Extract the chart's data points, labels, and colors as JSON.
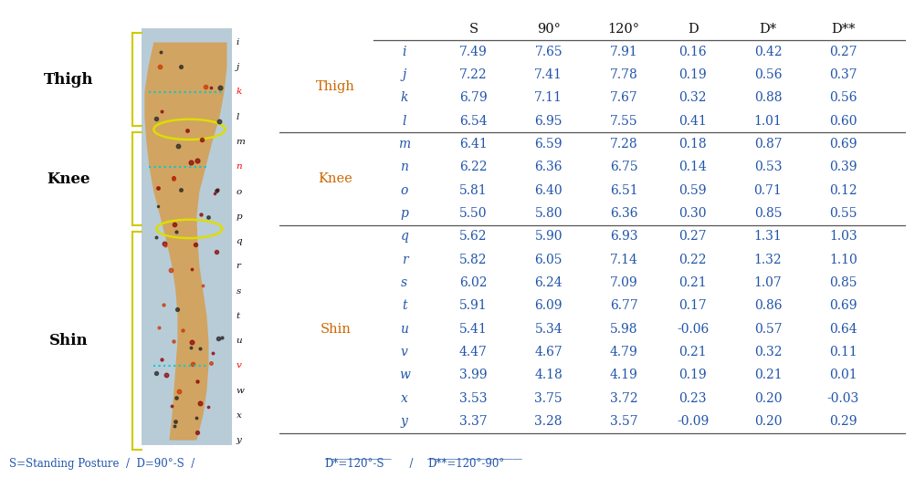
{
  "headers": [
    "",
    "",
    "S",
    "90°",
    "120°",
    "D",
    "D*",
    "D**"
  ],
  "sections": [
    {
      "label": "Thigh",
      "rows": [
        [
          "i",
          "7.49",
          "7.65",
          "7.91",
          "0.16",
          "0.42",
          "0.27"
        ],
        [
          "j",
          "7.22",
          "7.41",
          "7.78",
          "0.19",
          "0.56",
          "0.37"
        ],
        [
          "k",
          "6.79",
          "7.11",
          "7.67",
          "0.32",
          "0.88",
          "0.56"
        ],
        [
          "l",
          "6.54",
          "6.95",
          "7.55",
          "0.41",
          "1.01",
          "0.60"
        ]
      ]
    },
    {
      "label": "Knee",
      "rows": [
        [
          "m",
          "6.41",
          "6.59",
          "7.28",
          "0.18",
          "0.87",
          "0.69"
        ],
        [
          "n",
          "6.22",
          "6.36",
          "6.75",
          "0.14",
          "0.53",
          "0.39"
        ],
        [
          "o",
          "5.81",
          "6.40",
          "6.51",
          "0.59",
          "0.71",
          "0.12"
        ],
        [
          "p",
          "5.50",
          "5.80",
          "6.36",
          "0.30",
          "0.85",
          "0.55"
        ]
      ]
    },
    {
      "label": "Shin",
      "rows": [
        [
          "q",
          "5.62",
          "5.90",
          "6.93",
          "0.27",
          "1.31",
          "1.03"
        ],
        [
          "r",
          "5.82",
          "6.05",
          "7.14",
          "0.22",
          "1.32",
          "1.10"
        ],
        [
          "s",
          "6.02",
          "6.24",
          "7.09",
          "0.21",
          "1.07",
          "0.85"
        ],
        [
          "t",
          "5.91",
          "6.09",
          "6.77",
          "0.17",
          "0.86",
          "0.69"
        ],
        [
          "u",
          "5.41",
          "5.34",
          "5.98",
          "-0.06",
          "0.57",
          "0.64"
        ],
        [
          "v",
          "4.47",
          "4.67",
          "4.79",
          "0.21",
          "0.32",
          "0.11"
        ],
        [
          "w",
          "3.99",
          "4.18",
          "4.19",
          "0.19",
          "0.21",
          "0.01"
        ],
        [
          "x",
          "3.53",
          "3.75",
          "3.72",
          "0.23",
          "0.20",
          "-0.03"
        ],
        [
          "y",
          "3.37",
          "3.28",
          "3.57",
          "-0.09",
          "0.20",
          "0.29"
        ]
      ]
    }
  ],
  "footnote": "S=Standing Posture  /  D=90°-S  /  D*=120°-S  /  D**=120°-90°",
  "section_label_color": "#cc6600",
  "header_color": "#111111",
  "data_color": "#2255aa",
  "footnote_color": "#2255aa",
  "row_label_color": "#2255aa",
  "background_color": "#ffffff",
  "divider_color": "#555555",
  "bracket_color": "#cccc00",
  "thigh_label_color": "#000000",
  "knee_label_color": "#000000",
  "shin_label_color": "#000000",
  "red_letters": [
    "k",
    "n",
    "v"
  ],
  "letters": [
    "i",
    "j",
    "k",
    "l",
    "m",
    "n",
    "o",
    "p",
    "q",
    "r",
    "s",
    "t",
    "u",
    "v",
    "w",
    "x",
    "y"
  ]
}
